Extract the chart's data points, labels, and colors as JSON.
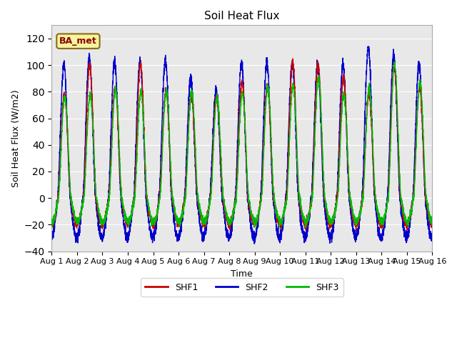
{
  "title": "Soil Heat Flux",
  "ylabel": "Soil Heat Flux (W/m2)",
  "xlabel": "Time",
  "site_label": "BA_met",
  "ylim": [
    -40,
    130
  ],
  "yticks": [
    -40,
    -20,
    0,
    20,
    40,
    60,
    80,
    100,
    120
  ],
  "xtick_labels": [
    "Aug 1",
    "Aug 2",
    "Aug 3",
    "Aug 4",
    "Aug 5",
    "Aug 6",
    "Aug 7",
    "Aug 8",
    "Aug 9",
    "Aug 10",
    "Aug 11",
    "Aug 12",
    "Aug 13",
    "Aug 14",
    "Aug 15",
    "Aug 16"
  ],
  "colors": {
    "SHF1": "#cc0000",
    "SHF2": "#0000cc",
    "SHF3": "#00bb00"
  },
  "background_color": "#e8e8e8",
  "n_days": 15,
  "points_per_day": 288
}
